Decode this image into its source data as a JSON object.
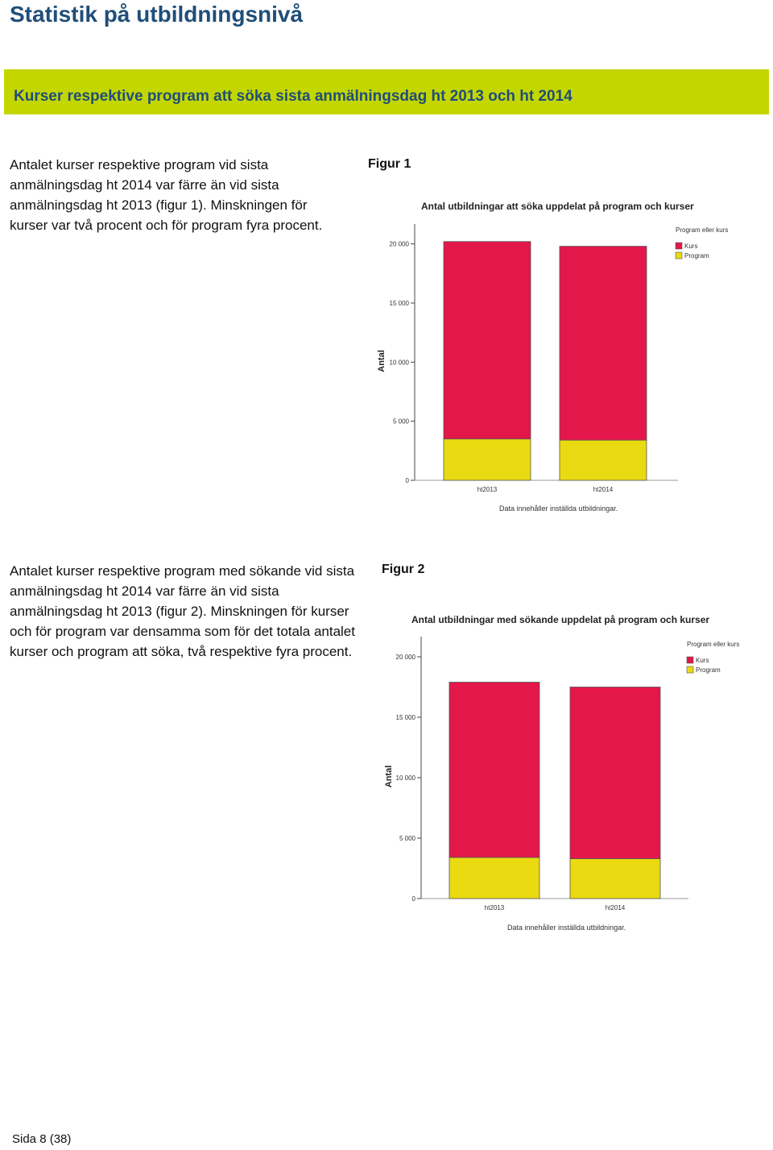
{
  "page_title": "Statistik på utbildningsnivå",
  "section_title": "Kurser respektive program att söka sista anmälningsdag ht 2013 och ht 2014",
  "paragraph_1": "Antalet kurser respektive program vid sista anmälningsdag ht 2014 var färre än vid sista anmälningsdag ht 2013 (figur 1). Minskningen för kurser var två procent och för program fyra procent.",
  "paragraph_2": "Antalet kurser respektive program med sökande vid sista anmälningsdag ht 2014 var färre än vid sista anmälningsdag ht 2013 (figur 2). Minskningen för kurser och för program var densamma som för det totala antalet kurser och program att söka, två respektive fyra procent.",
  "figure_1_label": "Figur 1",
  "figure_2_label": "Figur 2",
  "footer": "Sida 8 (38)",
  "colors": {
    "kurs": "#e3174a",
    "program": "#e9da11",
    "banner": "#c4d600",
    "heading": "#1f4e79"
  },
  "chart_data": [
    {
      "type": "bar",
      "stacked": true,
      "title": "Antal utbildningar att söka uppdelat på program och kurser",
      "ylabel": "Antal",
      "note": "Data innehåller inställda utbildningar.",
      "legend_title": "Program eller kurs",
      "legend_position": "top-right",
      "categories": [
        "ht2013",
        "ht2014"
      ],
      "ylim": [
        0,
        21000
      ],
      "yticks": [
        0,
        5000,
        10000,
        15000,
        20000
      ],
      "ytick_labels": [
        "0",
        "5 000",
        "10 000",
        "15 000",
        "20 000"
      ],
      "series": [
        {
          "name": "Program",
          "values": [
            3500,
            3400
          ]
        },
        {
          "name": "Kurs",
          "values": [
            16700,
            16400
          ]
        }
      ]
    },
    {
      "type": "bar",
      "stacked": true,
      "title": "Antal utbildningar  med sökande uppdelat på program och kurser",
      "ylabel": "Antal",
      "note": "Data innehåller inställda utbildningar.",
      "legend_title": "Program eller kurs",
      "legend_position": "top-right",
      "categories": [
        "ht2013",
        "ht2014"
      ],
      "ylim": [
        0,
        21000
      ],
      "yticks": [
        0,
        5000,
        10000,
        15000,
        20000
      ],
      "ytick_labels": [
        "0",
        "5 000",
        "10 000",
        "15 000",
        "20 000"
      ],
      "series": [
        {
          "name": "Program",
          "values": [
            3400,
            3300
          ]
        },
        {
          "name": "Kurs",
          "values": [
            14500,
            14200
          ]
        }
      ]
    }
  ]
}
